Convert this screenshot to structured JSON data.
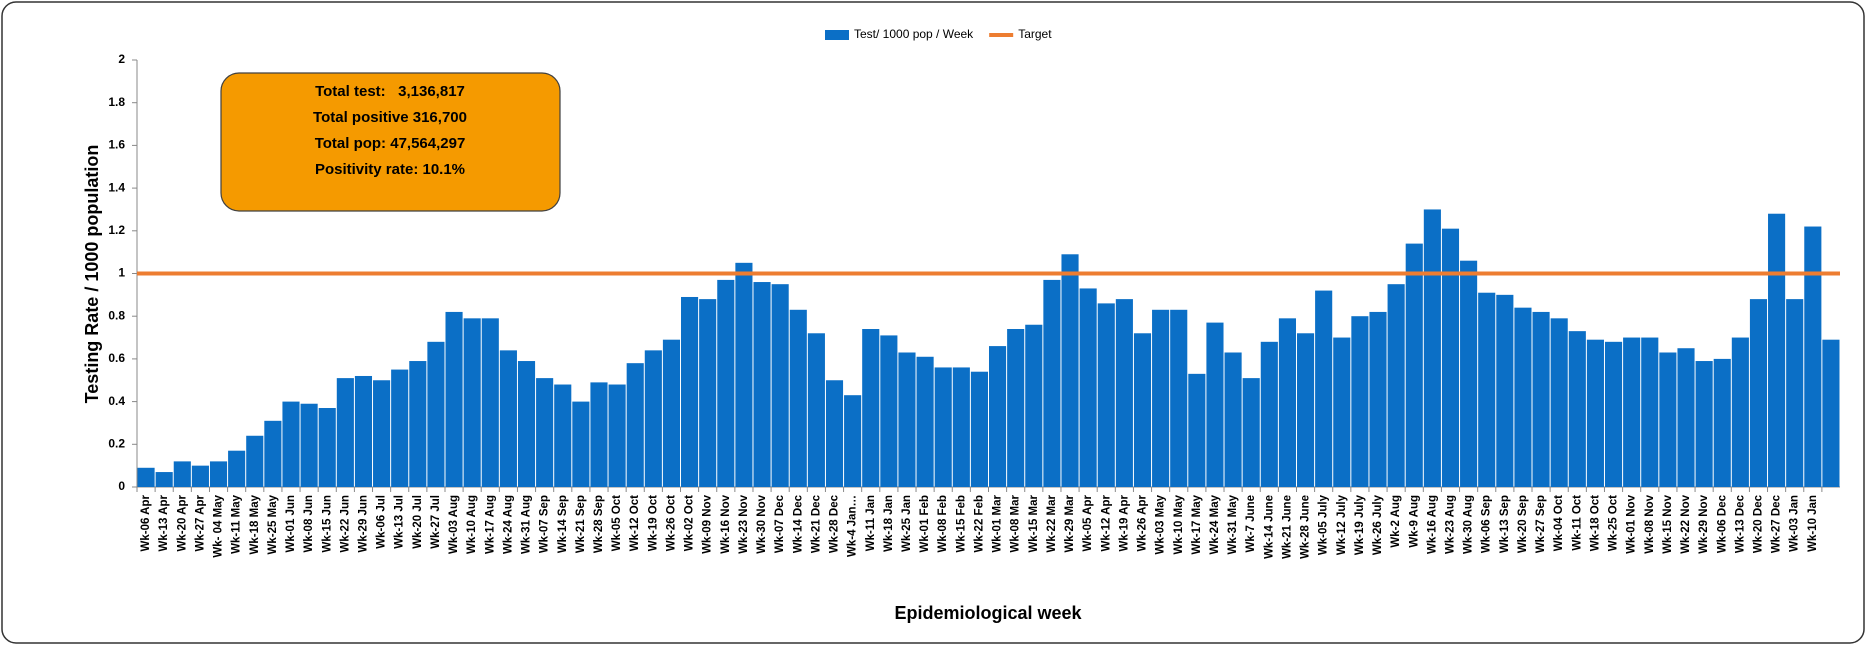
{
  "chart_data": {
    "type": "bar",
    "x_label": "Epidemiological week",
    "y_label": "Testing Rate / 1000 population",
    "categories": [
      "Wk-06 Apr",
      "Wk-13 Apr",
      "Wk-20 Apr",
      "Wk-27 Apr",
      "Wk- 04 May",
      "Wk-11 May",
      "Wk-18 May",
      "Wk-25 May",
      "Wk-01 Jun",
      "Wk-08 Jun",
      "Wk-15 Jun",
      "Wk-22 Jun",
      "Wk-29 Jun",
      "Wk-06 Jul",
      "Wk-13 Jul",
      "Wk-20 Jul",
      "Wk-27 Jul",
      "Wk-03 Aug",
      "Wk-10 Aug",
      "Wk-17 Aug",
      "Wk-24 Aug",
      "Wk-31 Aug",
      "Wk-07 Sep",
      "Wk-14 Sep",
      "Wk-21 Sep",
      "Wk-28 Sep",
      "Wk-05 Oct",
      "Wk-12 Oct",
      "Wk-19 Oct",
      "Wk-26 Oct",
      "Wk-02 Oct",
      "Wk-09 Nov",
      "Wk-16 Nov",
      "Wk-23 Nov",
      "Wk-30 Nov",
      "Wk-07 Dec",
      "Wk-14 Dec",
      "Wk-21 Dec",
      "Wk-28 Dec",
      "Wk-4 Jan…",
      "Wk-11 Jan",
      "Wk-18 Jan",
      "Wk-25 Jan",
      "Wk-01 Feb",
      "Wk-08 Feb",
      "Wk-15 Feb",
      "Wk-22 Feb",
      "Wk-01 Mar",
      "Wk-08 Mar",
      "Wk-15 Mar",
      "Wk-22 Mar",
      "Wk-29 Mar",
      "Wk-05 Apr",
      "Wk-12 Apr",
      "Wk-19 Apr",
      "Wk-26 Apr",
      "Wk-03 May",
      "Wk-10 May",
      "Wk-17 May",
      "Wk-24 May",
      "Wk-31 May",
      "Wk-7 June",
      "Wk-14 June",
      "Wk-21 June",
      "Wk-28 June",
      "Wk-05 July",
      "Wk-12 July",
      "Wk-19 July",
      "Wk-26 July",
      "Wk-2 Aug",
      "Wk-9 Aug",
      "Wk-16 Aug",
      "Wk-23 Aug",
      "Wk-30 Aug",
      "Wk-06 Sep",
      "Wk-13 Sep",
      "Wk-20 Sep",
      "Wk-27 Sep",
      "Wk-04 Oct",
      "Wk-11 Oct",
      "Wk-18 Oct",
      "Wk-25 Oct",
      "Wk-01 Nov",
      "Wk-08 Nov",
      "Wk-15 Nov",
      "Wk-22 Nov",
      "Wk-29 Nov",
      "Wk-06 Dec",
      "Wk-13 Dec",
      "Wk-20 Dec",
      "Wk-27 Dec",
      "Wk-03 Jan",
      "Wk-10 Jan",
      null
    ],
    "series": [
      {
        "name": "Test/ 1000 pop / Week",
        "color": "#0b6fc6",
        "values": [
          0.09,
          0.07,
          0.12,
          0.1,
          0.12,
          0.17,
          0.24,
          0.31,
          0.4,
          0.39,
          0.37,
          0.51,
          0.52,
          0.5,
          0.55,
          0.59,
          0.68,
          0.82,
          0.79,
          0.79,
          0.64,
          0.59,
          0.51,
          0.48,
          0.4,
          0.49,
          0.48,
          0.58,
          0.64,
          0.69,
          0.89,
          0.88,
          0.97,
          1.05,
          0.96,
          0.95,
          0.83,
          0.72,
          0.5,
          0.43,
          0.74,
          0.71,
          0.63,
          0.61,
          0.56,
          0.56,
          0.54,
          0.66,
          0.74,
          0.76,
          0.97,
          1.09,
          0.93,
          0.86,
          0.88,
          0.72,
          0.83,
          0.83,
          0.53,
          0.77,
          0.63,
          0.51,
          0.68,
          0.79,
          0.72,
          0.92,
          0.7,
          0.8,
          0.82,
          0.95,
          1.14,
          1.3,
          1.21,
          1.06,
          0.91,
          0.9,
          0.84,
          0.82,
          0.79,
          0.73,
          0.69,
          0.68,
          0.7,
          0.7,
          0.63,
          0.65,
          0.59,
          0.6,
          0.7,
          0.88,
          1.28,
          0.88,
          1.22,
          0.69
        ]
      }
    ],
    "target": {
      "name": "Target",
      "color": "#ed7d31",
      "value": 1
    },
    "annotation": [
      "Total test:   3,136,817",
      "Total positive 316,700",
      "Total pop: 47,564,297",
      "Positivity rate: 10.1%"
    ],
    "ylim": [
      0,
      2
    ],
    "yticks": [
      0,
      0.2,
      0.4,
      0.6,
      0.8,
      1,
      1.2,
      1.4,
      1.6,
      1.8,
      2
    ]
  }
}
